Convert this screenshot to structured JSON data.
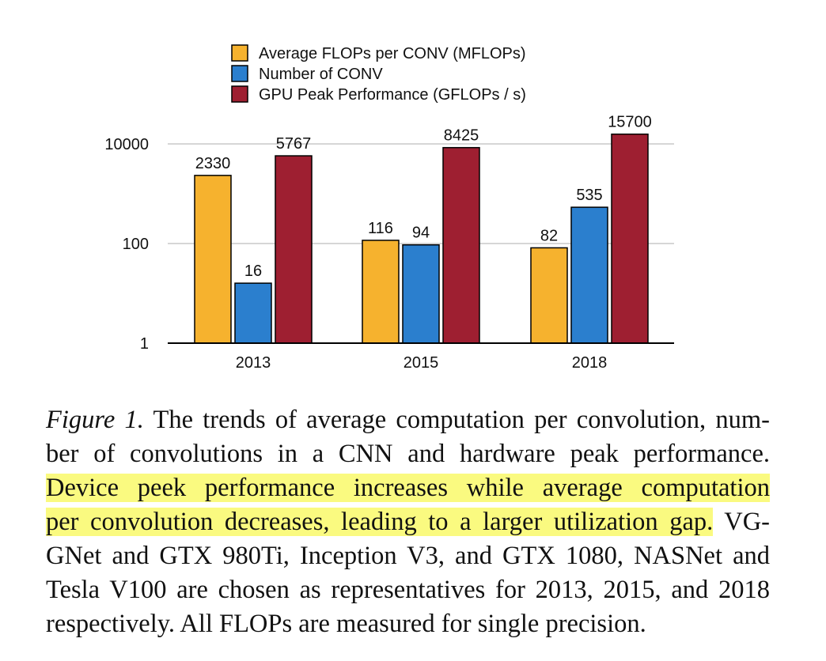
{
  "colors": {
    "series_0": "#f6b22e",
    "series_1": "#2b7fce",
    "series_2": "#9e1f31",
    "grid": "#c8c8c8",
    "highlight": "#fafa80"
  },
  "chart_data": {
    "type": "bar",
    "scale": "log",
    "categories": [
      "2013",
      "2015",
      "2018"
    ],
    "series": [
      {
        "name": "Average FLOPs per CONV (MFLOPs)",
        "values": [
          2330,
          116,
          82
        ],
        "labels": [
          "2330",
          "116",
          "82"
        ]
      },
      {
        "name": "Number of CONV",
        "values": [
          16,
          94,
          535
        ],
        "labels": [
          "16",
          "94",
          "535"
        ]
      },
      {
        "name": "GPU Peak Performance (GFLOPs / s)",
        "values": [
          5767,
          8425,
          15700
        ],
        "labels": [
          "5767",
          "8425",
          "15700"
        ]
      }
    ],
    "yticks": [
      1,
      100,
      10000
    ],
    "ytick_labels": [
      "1",
      "100",
      "10000"
    ],
    "ylim": [
      1,
      20000
    ],
    "legend_position": "top",
    "grid": true
  },
  "caption": {
    "label": "Figure 1.",
    "line1_rest": " The trends of average computation per convolution, num-",
    "line2": "ber of convolutions in a CNN and hardware peak performance.",
    "line3_hl": "Device peek performance increases while average computation",
    "line4_hl": "per convolution decreases, leading to a larger utilization gap.",
    "line4_rest": " VG-",
    "line5": "GNet and GTX 980Ti, Inception V3, and GTX 1080, NASNet and",
    "line6": "Tesla V100 are chosen as representatives for 2013, 2015, and 2018",
    "line7": "respectively. All FLOPs are measured for single precision."
  }
}
